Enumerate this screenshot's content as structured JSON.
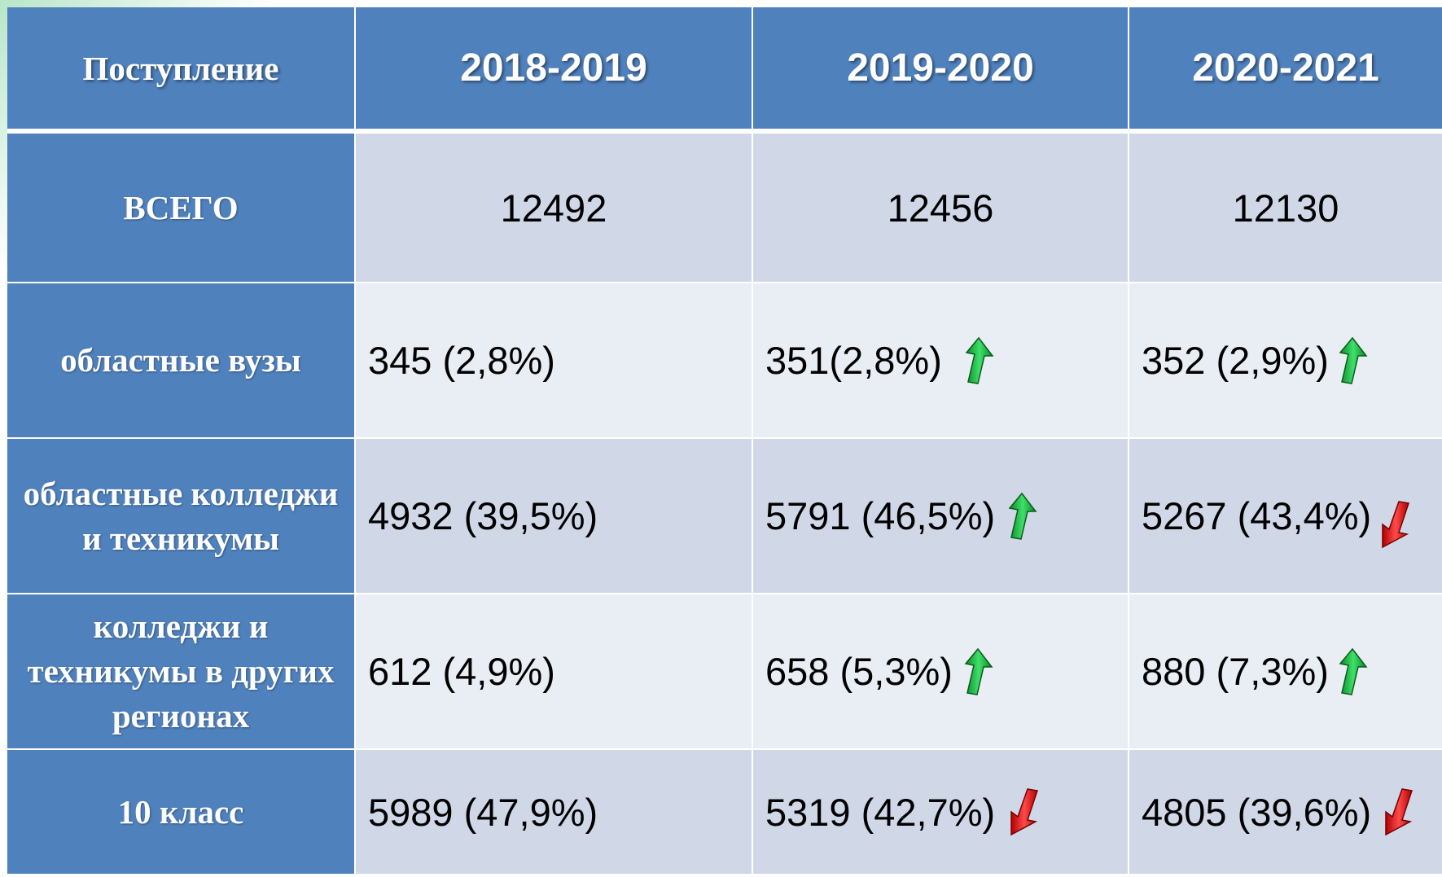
{
  "table": {
    "header": [
      "Поступление",
      "2018-2019",
      "2019-2020",
      "2020-2021"
    ],
    "rows": [
      [
        "ВСЕГО",
        "12492",
        "12456",
        "12130"
      ],
      [
        "областные вузы",
        "345 (2,8%)",
        "351(2,8%)",
        "352 (2,9%)"
      ],
      [
        "областные колледжи и техникумы",
        "4932 (39,5%)",
        "5791 (46,5%)",
        "5267 (43,4%)"
      ],
      [
        "колледжи и техникумы в других регионах",
        "612 (4,9%)",
        "658 (5,3%)",
        "880 (7,3%)"
      ],
      [
        "10 класс",
        "5989 (47,9%)",
        "5319 (42,7%)",
        "4805 (39,6%)"
      ]
    ]
  }
}
